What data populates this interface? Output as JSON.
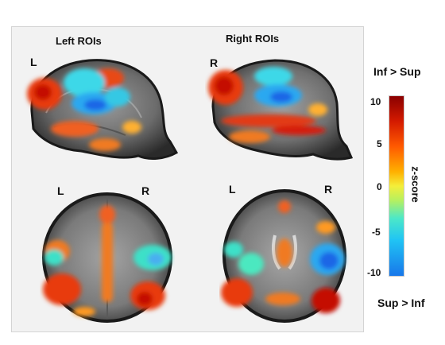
{
  "figure": {
    "left_title": "Left ROIs",
    "right_title": "Right ROIs",
    "panel_labels": {
      "sag_left": "L",
      "sag_right": "R",
      "ax_left_l": "L",
      "ax_left_r": "R",
      "ax_right_l": "L",
      "ax_right_r": "R"
    }
  },
  "colorbar": {
    "top_label": "Inf > Sup",
    "bottom_label": "Sup > Inf",
    "axis_label": "z-score",
    "ticks": [
      "10",
      "5",
      "0",
      "-5",
      "-10"
    ],
    "range": [
      -10,
      10
    ],
    "colors": [
      "#8a0000",
      "#ff5a00",
      "#f4ee3a",
      "#4ce8c8",
      "#1877ea"
    ]
  }
}
